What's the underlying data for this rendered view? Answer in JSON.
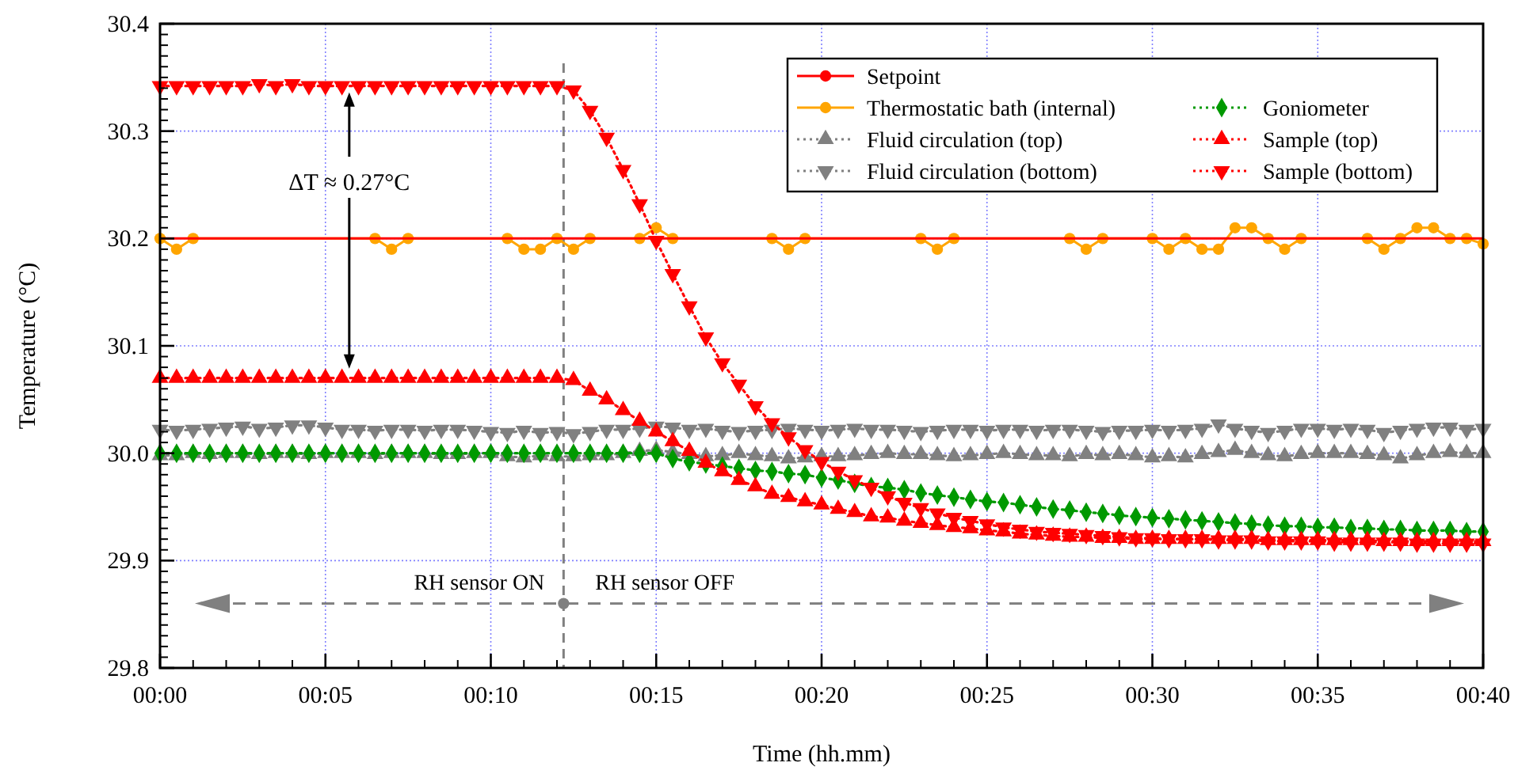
{
  "chart_data": {
    "type": "line",
    "xlabel": "Time (hh.mm)",
    "ylabel": "Temperature (°C)",
    "xlim": [
      0,
      40
    ],
    "ylim": [
      29.8,
      30.4
    ],
    "xticks": [
      {
        "value": 0,
        "label": "00:00"
      },
      {
        "value": 5,
        "label": "00:05"
      },
      {
        "value": 10,
        "label": "00:10"
      },
      {
        "value": 15,
        "label": "00:15"
      },
      {
        "value": 20,
        "label": "00:20"
      },
      {
        "value": 25,
        "label": "00:25"
      },
      {
        "value": 30,
        "label": "00:30"
      },
      {
        "value": 35,
        "label": "00:35"
      },
      {
        "value": 40,
        "label": "00:40"
      }
    ],
    "yticks": [
      {
        "value": 29.8,
        "label": "29.8"
      },
      {
        "value": 29.9,
        "label": "29.9"
      },
      {
        "value": 30.0,
        "label": "30.0"
      },
      {
        "value": 30.1,
        "label": "30.1"
      },
      {
        "value": 30.2,
        "label": "30.2"
      },
      {
        "value": 30.3,
        "label": "30.3"
      },
      {
        "value": 30.4,
        "label": "30.4"
      }
    ],
    "grid": true,
    "legend": "top right",
    "x": [
      0,
      0.5,
      1,
      1.5,
      2,
      2.5,
      3,
      3.5,
      4,
      4.5,
      5,
      5.5,
      6,
      6.5,
      7,
      7.5,
      8,
      8.5,
      9,
      9.5,
      10,
      10.5,
      11,
      11.5,
      12,
      12.5,
      13,
      13.5,
      14,
      14.5,
      15,
      15.5,
      16,
      16.5,
      17,
      17.5,
      18,
      18.5,
      19,
      19.5,
      20,
      20.5,
      21,
      21.5,
      22,
      22.5,
      23,
      23.5,
      24,
      24.5,
      25,
      25.5,
      26,
      26.5,
      27,
      27.5,
      28,
      28.5,
      29,
      29.5,
      30,
      30.5,
      31,
      31.5,
      32,
      32.5,
      33,
      33.5,
      34,
      34.5,
      35,
      35.5,
      36,
      36.5,
      37,
      37.5,
      38,
      38.5,
      39,
      39.5,
      40
    ],
    "series": [
      {
        "name": "Setpoint",
        "color": "#ff0000",
        "marker": "none",
        "line_style": "solid",
        "x": [
          0,
          40
        ],
        "values": [
          30.2,
          30.2
        ]
      },
      {
        "name": "Thermostatic bath (internal)",
        "color": "#ffa500",
        "marker": "circle",
        "line_style": "solid",
        "x": [
          0,
          0.5,
          1,
          6.5,
          7,
          7.5,
          10.5,
          11,
          11.5,
          12,
          12.5,
          13,
          14.5,
          15,
          15.5,
          18.5,
          19,
          19.5,
          23,
          23.5,
          24,
          27.5,
          28,
          28.5,
          30,
          30.5,
          31,
          31.5,
          32,
          32.5,
          33,
          33.5,
          34,
          34.5,
          36.5,
          37,
          37.5,
          38,
          38.5,
          39,
          39.5,
          40
        ],
        "values": [
          30.2,
          30.19,
          30.2,
          30.2,
          30.19,
          30.2,
          30.2,
          30.19,
          30.19,
          30.2,
          30.19,
          30.2,
          30.2,
          30.21,
          30.2,
          30.2,
          30.19,
          30.2,
          30.2,
          30.19,
          30.2,
          30.2,
          30.19,
          30.2,
          30.2,
          30.19,
          30.2,
          30.19,
          30.19,
          30.21,
          30.21,
          30.2,
          30.19,
          30.2,
          30.2,
          30.19,
          30.2,
          30.21,
          30.21,
          30.2,
          30.2,
          30.195
        ]
      },
      {
        "name": "Fluid circulation (top)",
        "color": "#808080",
        "marker": "triangle",
        "line_style": "dotted",
        "values": [
          29.998,
          29.998,
          30.0,
          29.999,
          30.0,
          30.0,
          29.999,
          30.0,
          30.0,
          29.999,
          30.0,
          30.0,
          30.0,
          29.999,
          30.0,
          30.0,
          30.0,
          29.999,
          29.999,
          30.0,
          30.0,
          29.997,
          29.996,
          29.998,
          29.997,
          29.997,
          29.998,
          29.998,
          30.0,
          30.002,
          30.003,
          30.001,
          29.999,
          29.997,
          29.998,
          30.0,
          29.998,
          29.997,
          29.995,
          29.996,
          29.997,
          29.997,
          29.998,
          29.999,
          30.0,
          29.999,
          29.999,
          29.998,
          29.997,
          29.998,
          29.999,
          30.0,
          29.999,
          29.998,
          29.998,
          29.997,
          29.999,
          29.998,
          29.999,
          29.998,
          29.996,
          29.997,
          29.996,
          29.999,
          30.001,
          30.003,
          30.0,
          29.998,
          29.997,
          29.999,
          30.0,
          30.0,
          30.0,
          29.999,
          29.998,
          29.995,
          29.998,
          30.0,
          30.001,
          30.0,
          30.0
        ]
      },
      {
        "name": "Fluid circulation (bottom)",
        "color": "#808080",
        "marker": "triangle-down",
        "line_style": "dotted",
        "values": [
          30.022,
          30.021,
          30.022,
          30.023,
          30.024,
          30.025,
          30.023,
          30.024,
          30.026,
          30.026,
          30.024,
          30.022,
          30.022,
          30.021,
          30.022,
          30.022,
          30.021,
          30.022,
          30.022,
          30.021,
          30.02,
          30.019,
          30.021,
          30.019,
          30.02,
          30.018,
          30.02,
          30.022,
          30.022,
          30.023,
          30.025,
          30.024,
          30.022,
          30.023,
          30.021,
          30.02,
          30.021,
          30.022,
          30.023,
          30.022,
          30.021,
          30.022,
          30.023,
          30.022,
          30.022,
          30.021,
          30.02,
          30.021,
          30.022,
          30.022,
          30.021,
          30.022,
          30.022,
          30.021,
          30.022,
          30.022,
          30.021,
          30.02,
          30.021,
          30.021,
          30.022,
          30.021,
          30.022,
          30.023,
          30.027,
          30.023,
          30.021,
          30.019,
          30.021,
          30.023,
          30.023,
          30.022,
          30.023,
          30.022,
          30.019,
          30.021,
          30.023,
          30.024,
          30.024,
          30.022,
          30.023
        ]
      },
      {
        "name": "Goniometer",
        "color": "#009900",
        "marker": "diamond",
        "line_style": "dotted",
        "values": [
          30.0,
          30.0,
          30.0,
          30.0,
          30.0,
          30.0,
          30.0,
          30.0,
          30.0,
          30.0,
          30.0,
          30.0,
          30.0,
          30.0,
          30.0,
          30.0,
          30.0,
          30.0,
          30.0,
          30.0,
          30.0,
          30.0,
          30.0,
          30.0,
          30.0,
          30.0,
          30.0,
          30.0,
          30.0,
          30.0,
          30.0,
          29.995,
          29.992,
          29.99,
          29.988,
          29.986,
          29.984,
          29.983,
          29.981,
          29.98,
          29.977,
          29.975,
          29.972,
          29.969,
          29.968,
          29.966,
          29.963,
          29.961,
          29.959,
          29.957,
          29.955,
          29.954,
          29.952,
          29.95,
          29.948,
          29.947,
          29.945,
          29.944,
          29.942,
          29.941,
          29.94,
          29.939,
          29.938,
          29.937,
          29.936,
          29.935,
          29.934,
          29.933,
          29.932,
          29.932,
          29.931,
          29.931,
          29.93,
          29.93,
          29.929,
          29.929,
          29.928,
          29.928,
          29.928,
          29.927,
          29.927
        ]
      },
      {
        "name": "Sample (top)",
        "color": "#ff0000",
        "marker": "triangle",
        "line_style": "dotted",
        "values": [
          30.07,
          30.07,
          30.07,
          30.07,
          30.07,
          30.07,
          30.07,
          30.07,
          30.07,
          30.07,
          30.07,
          30.07,
          30.07,
          30.07,
          30.07,
          30.07,
          30.07,
          30.07,
          30.07,
          30.07,
          30.07,
          30.07,
          30.07,
          30.07,
          30.07,
          30.068,
          30.058,
          30.05,
          30.04,
          30.03,
          30.02,
          30.011,
          30.002,
          29.991,
          29.983,
          29.975,
          29.969,
          29.962,
          29.959,
          29.955,
          29.952,
          29.948,
          29.945,
          29.941,
          29.94,
          29.937,
          29.935,
          29.933,
          29.931,
          29.93,
          29.928,
          29.927,
          29.925,
          29.924,
          29.923,
          29.922,
          29.922,
          29.921,
          29.921,
          29.92,
          29.92,
          29.92,
          29.92,
          29.92,
          29.92,
          29.92,
          29.92,
          29.919,
          29.919,
          29.919,
          29.919,
          29.919,
          29.919,
          29.919,
          29.918,
          29.918,
          29.918,
          29.918,
          29.918,
          29.918,
          29.918
        ]
      },
      {
        "name": "Sample (bottom)",
        "color": "#ff0000",
        "marker": "triangle-down",
        "line_style": "dotted",
        "values": [
          30.342,
          30.342,
          30.342,
          30.342,
          30.342,
          30.342,
          30.344,
          30.342,
          30.344,
          30.342,
          30.342,
          30.342,
          30.342,
          30.342,
          30.342,
          30.342,
          30.342,
          30.342,
          30.342,
          30.342,
          30.342,
          30.342,
          30.342,
          30.342,
          30.342,
          30.338,
          30.319,
          30.294,
          30.264,
          30.232,
          30.198,
          30.167,
          30.137,
          30.108,
          30.084,
          30.064,
          30.044,
          30.028,
          30.015,
          30.003,
          29.992,
          29.983,
          29.975,
          29.968,
          29.96,
          29.954,
          29.949,
          29.944,
          29.94,
          29.937,
          29.934,
          29.931,
          29.929,
          29.927,
          29.926,
          29.925,
          29.924,
          29.923,
          29.922,
          29.921,
          29.921,
          29.92,
          29.92,
          29.92,
          29.919,
          29.919,
          29.919,
          29.918,
          29.918,
          29.918,
          29.918,
          29.917,
          29.917,
          29.917,
          29.917,
          29.917,
          29.916,
          29.916,
          29.916,
          29.916,
          29.916
        ]
      },
      {
        "type": "scatter",
        "color": "#808080",
        "marker": "circle",
        "x": [
          12.2
        ],
        "values": [
          29.86
        ]
      }
    ],
    "ref_lines": [
      {
        "axis": "x",
        "value": 12.2,
        "color": "#808080",
        "line_style": "dashed"
      }
    ],
    "annotations": [
      "ΔT ≈ 0.27°C",
      "RH sensor ON",
      "RH sensor OFF"
    ]
  }
}
